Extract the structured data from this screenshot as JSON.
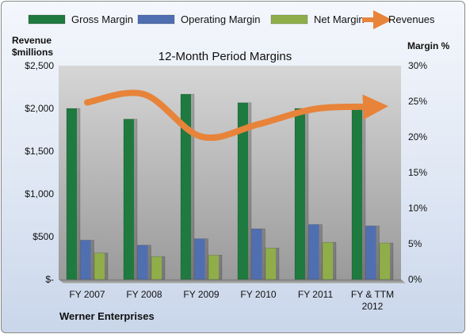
{
  "chart_data": {
    "type": "bar",
    "title": "12-Month Period Margins",
    "categories": [
      "FY 2007",
      "FY 2008",
      "FY 2009",
      "FY 2010",
      "FY 2011",
      "FY & TTM|2012"
    ],
    "series": [
      {
        "name": "Gross Margin",
        "axis": "right",
        "color": "#1f7a3f",
        "values": [
          24.0,
          22.5,
          26.0,
          24.8,
          24.0,
          24.0
        ]
      },
      {
        "name": "Operating Margin",
        "axis": "right",
        "color": "#4f6fb0",
        "values": [
          5.5,
          4.8,
          5.7,
          7.1,
          7.7,
          7.5
        ]
      },
      {
        "name": "Net Margin",
        "axis": "right",
        "color": "#8fae4a",
        "values": [
          3.7,
          3.2,
          3.4,
          4.4,
          5.2,
          5.1
        ]
      }
    ],
    "line_series": {
      "name": "Revenues",
      "axis": "left",
      "color": "#e8833a",
      "values": [
        2070,
        2165,
        1670,
        1815,
        1995,
        2020
      ]
    },
    "left_axis": {
      "title_line1": "Revenue",
      "title_line2": "$millions",
      "min": 0,
      "max": 2500,
      "ticks": [
        0,
        500,
        1000,
        1500,
        2000,
        2500
      ],
      "tick_labels": [
        "$-",
        "$500",
        "$1,000",
        "$1,500",
        "$2,000",
        "$2,500"
      ]
    },
    "right_axis": {
      "title": "Margin %",
      "min": 0,
      "max": 30,
      "ticks": [
        0,
        5,
        10,
        15,
        20,
        25,
        30
      ],
      "tick_labels": [
        "0%",
        "5%",
        "10%",
        "15%",
        "20%",
        "25%",
        "30%"
      ]
    },
    "grid": false,
    "legend_position": "top"
  },
  "footer": {
    "company": "Werner Enterprises"
  }
}
